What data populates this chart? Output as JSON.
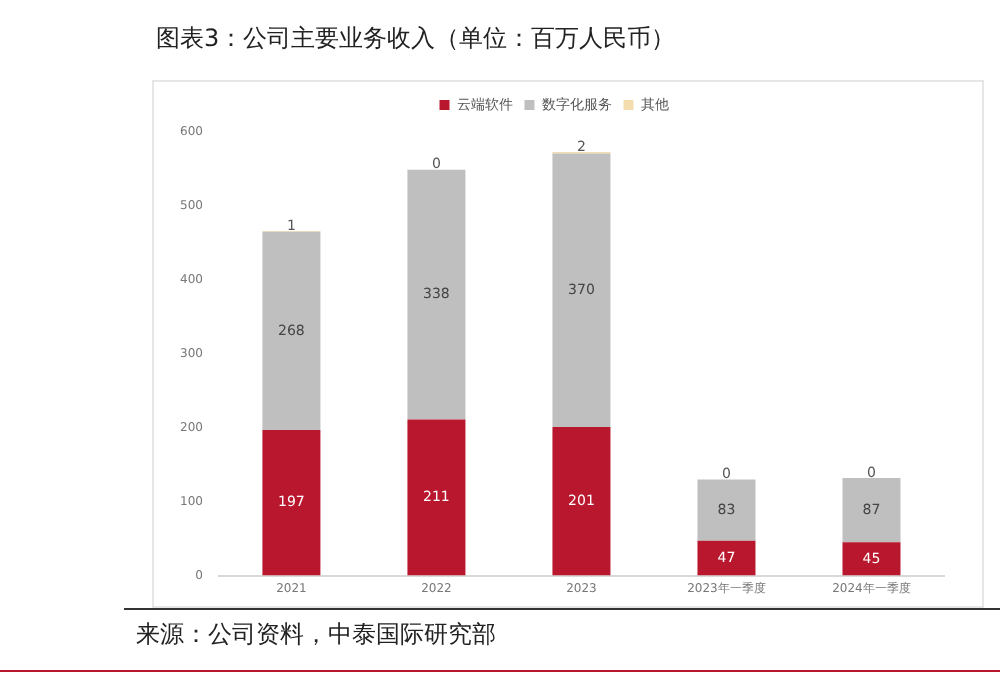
{
  "chart_data": {
    "type": "bar",
    "title": "图表3：公司主要业务收入（单位：百万人民币）",
    "stacked": true,
    "data_labels": true,
    "legend": "top",
    "grid": false,
    "categories": [
      "2021",
      "2022",
      "2023",
      "2023年一季度",
      "2024年一季度"
    ],
    "series": [
      {
        "name": "云端软件",
        "color": "#b9172e",
        "values": [
          197,
          211,
          201,
          47,
          45
        ]
      },
      {
        "name": "数字化服务",
        "color": "#bfbfbf",
        "values": [
          268,
          338,
          370,
          83,
          87
        ]
      },
      {
        "name": "其他",
        "color": "#f3dcae",
        "values": [
          1,
          0,
          2,
          0,
          0
        ]
      }
    ],
    "ylim": [
      0,
      600
    ],
    "yticks": [
      0,
      100,
      200,
      300,
      400,
      500,
      600
    ],
    "annotations": [
      "来源：公司资料，中泰国际研究部"
    ]
  }
}
